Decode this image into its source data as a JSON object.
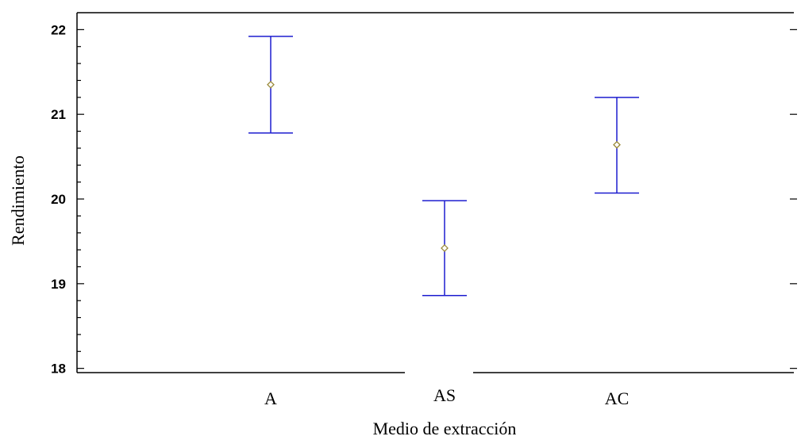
{
  "chart_data": {
    "type": "scatter",
    "subtype": "means-with-error-bars",
    "title": "",
    "xlabel": "Medio de extracción",
    "ylabel": "Rendimiento",
    "categories": [
      "A",
      "AS",
      "AC"
    ],
    "ylim": [
      17.95,
      22.2
    ],
    "yticks": [
      18,
      19,
      20,
      21,
      22
    ],
    "ytick_labels": [
      "18",
      "19",
      "20",
      "21",
      "22"
    ],
    "series": [
      {
        "mean": [
          21.35,
          19.42,
          20.64
        ],
        "lower": [
          20.78,
          18.86,
          20.07
        ],
        "upper": [
          21.92,
          19.98,
          21.2
        ]
      }
    ],
    "grid": false,
    "colors": {
      "error_bar": "#1c1ccf",
      "marker": "#9a8a3a",
      "axis": "#000000"
    }
  }
}
